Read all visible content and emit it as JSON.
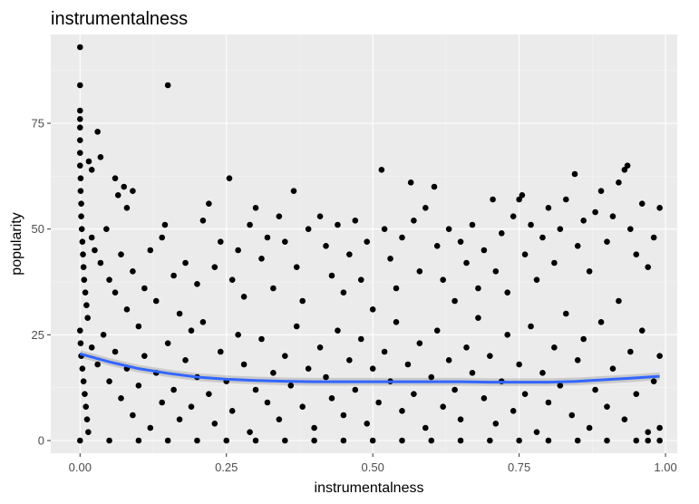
{
  "chart_data": {
    "type": "scatter",
    "title": "instrumentalness",
    "xlabel": "instrumentalness",
    "ylabel": "popularity",
    "xlim": [
      -0.05,
      1.02
    ],
    "ylim": [
      -3,
      96
    ],
    "x_ticks": [
      0,
      0.25,
      0.5,
      0.75,
      1
    ],
    "x_tick_labels": [
      "0.00",
      "0.25",
      "0.50",
      "0.75",
      "1.00"
    ],
    "y_ticks": [
      0,
      25,
      50,
      75
    ],
    "y_tick_labels": [
      "0",
      "25",
      "50",
      "75"
    ],
    "grid": true,
    "legend": "none",
    "colors": {
      "panel": "#ebebeb",
      "points": "#000000",
      "smooth_line": "#3366ff",
      "confidence_band": "#999999"
    },
    "smooth": {
      "x": [
        0,
        0.05,
        0.1,
        0.15,
        0.2,
        0.25,
        0.3,
        0.35,
        0.4,
        0.45,
        0.5,
        0.55,
        0.6,
        0.65,
        0.7,
        0.75,
        0.8,
        0.85,
        0.9,
        0.95,
        0.99
      ],
      "y": [
        20.5,
        18.6,
        17.0,
        15.9,
        15.0,
        14.5,
        14.2,
        14.0,
        13.9,
        13.9,
        13.9,
        13.9,
        13.9,
        13.9,
        13.8,
        13.8,
        13.8,
        14.0,
        14.4,
        14.8,
        15.2
      ]
    },
    "points": [
      [
        0.0,
        93
      ],
      [
        0.0,
        84
      ],
      [
        0.0,
        78
      ],
      [
        0.0,
        76
      ],
      [
        0.0,
        74
      ],
      [
        0.0,
        71
      ],
      [
        0.0,
        68
      ],
      [
        0.0,
        65
      ],
      [
        0.001,
        62
      ],
      [
        0.001,
        59
      ],
      [
        0.002,
        56
      ],
      [
        0.002,
        53
      ],
      [
        0.003,
        50
      ],
      [
        0.004,
        47
      ],
      [
        0.005,
        44
      ],
      [
        0.006,
        41
      ],
      [
        0.007,
        38
      ],
      [
        0.009,
        35
      ],
      [
        0.011,
        32
      ],
      [
        0.013,
        29
      ],
      [
        0.0,
        26
      ],
      [
        0.001,
        23
      ],
      [
        0.002,
        20
      ],
      [
        0.004,
        17
      ],
      [
        0.006,
        14
      ],
      [
        0.008,
        11
      ],
      [
        0.01,
        8
      ],
      [
        0.012,
        5
      ],
      [
        0.014,
        2
      ],
      [
        0.0,
        0
      ],
      [
        0.015,
        66
      ],
      [
        0.02,
        64
      ],
      [
        0.03,
        73
      ],
      [
        0.035,
        67
      ],
      [
        0.06,
        62
      ],
      [
        0.065,
        58
      ],
      [
        0.075,
        60
      ],
      [
        0.08,
        55
      ],
      [
        0.09,
        59
      ],
      [
        0.15,
        84
      ],
      [
        0.02,
        48
      ],
      [
        0.025,
        45
      ],
      [
        0.035,
        42
      ],
      [
        0.045,
        50
      ],
      [
        0.05,
        38
      ],
      [
        0.06,
        35
      ],
      [
        0.07,
        44
      ],
      [
        0.08,
        31
      ],
      [
        0.09,
        40
      ],
      [
        0.1,
        27
      ],
      [
        0.11,
        36
      ],
      [
        0.12,
        45
      ],
      [
        0.13,
        33
      ],
      [
        0.14,
        48
      ],
      [
        0.145,
        51
      ],
      [
        0.16,
        39
      ],
      [
        0.17,
        30
      ],
      [
        0.18,
        42
      ],
      [
        0.19,
        26
      ],
      [
        0.2,
        37
      ],
      [
        0.21,
        52
      ],
      [
        0.22,
        56
      ],
      [
        0.23,
        41
      ],
      [
        0.24,
        47
      ],
      [
        0.255,
        62
      ],
      [
        0.26,
        38
      ],
      [
        0.27,
        45
      ],
      [
        0.28,
        34
      ],
      [
        0.29,
        51
      ],
      [
        0.3,
        55
      ],
      [
        0.31,
        43
      ],
      [
        0.32,
        48
      ],
      [
        0.33,
        36
      ],
      [
        0.34,
        53
      ],
      [
        0.35,
        47
      ],
      [
        0.365,
        59
      ],
      [
        0.37,
        41
      ],
      [
        0.38,
        33
      ],
      [
        0.39,
        50
      ],
      [
        0.41,
        53
      ],
      [
        0.42,
        46
      ],
      [
        0.43,
        39
      ],
      [
        0.44,
        51
      ],
      [
        0.45,
        35
      ],
      [
        0.46,
        44
      ],
      [
        0.47,
        52
      ],
      [
        0.48,
        38
      ],
      [
        0.49,
        47
      ],
      [
        0.5,
        31
      ],
      [
        0.515,
        64
      ],
      [
        0.52,
        50
      ],
      [
        0.53,
        43
      ],
      [
        0.54,
        36
      ],
      [
        0.55,
        48
      ],
      [
        0.565,
        61
      ],
      [
        0.57,
        52
      ],
      [
        0.58,
        40
      ],
      [
        0.59,
        55
      ],
      [
        0.605,
        60
      ],
      [
        0.61,
        46
      ],
      [
        0.62,
        38
      ],
      [
        0.63,
        50
      ],
      [
        0.64,
        33
      ],
      [
        0.65,
        47
      ],
      [
        0.66,
        42
      ],
      [
        0.67,
        51
      ],
      [
        0.68,
        36
      ],
      [
        0.69,
        45
      ],
      [
        0.705,
        57
      ],
      [
        0.71,
        40
      ],
      [
        0.72,
        49
      ],
      [
        0.73,
        35
      ],
      [
        0.74,
        53
      ],
      [
        0.75,
        57
      ],
      [
        0.755,
        58
      ],
      [
        0.76,
        44
      ],
      [
        0.77,
        51
      ],
      [
        0.78,
        38
      ],
      [
        0.79,
        48
      ],
      [
        0.8,
        55
      ],
      [
        0.81,
        42
      ],
      [
        0.82,
        50
      ],
      [
        0.83,
        57
      ],
      [
        0.845,
        63
      ],
      [
        0.85,
        46
      ],
      [
        0.86,
        52
      ],
      [
        0.87,
        40
      ],
      [
        0.88,
        54
      ],
      [
        0.89,
        59
      ],
      [
        0.9,
        47
      ],
      [
        0.91,
        53
      ],
      [
        0.92,
        61
      ],
      [
        0.93,
        64
      ],
      [
        0.935,
        65
      ],
      [
        0.94,
        50
      ],
      [
        0.95,
        44
      ],
      [
        0.96,
        56
      ],
      [
        0.97,
        41
      ],
      [
        0.98,
        48
      ],
      [
        0.99,
        55
      ],
      [
        0.02,
        22
      ],
      [
        0.03,
        18
      ],
      [
        0.04,
        25
      ],
      [
        0.05,
        14
      ],
      [
        0.06,
        21
      ],
      [
        0.07,
        10
      ],
      [
        0.08,
        17
      ],
      [
        0.09,
        6
      ],
      [
        0.1,
        13
      ],
      [
        0.11,
        20
      ],
      [
        0.12,
        3
      ],
      [
        0.13,
        16
      ],
      [
        0.14,
        9
      ],
      [
        0.15,
        23
      ],
      [
        0.16,
        12
      ],
      [
        0.17,
        5
      ],
      [
        0.18,
        19
      ],
      [
        0.19,
        8
      ],
      [
        0.2,
        15
      ],
      [
        0.21,
        28
      ],
      [
        0.22,
        11
      ],
      [
        0.23,
        4
      ],
      [
        0.24,
        21
      ],
      [
        0.25,
        14
      ],
      [
        0.26,
        7
      ],
      [
        0.27,
        25
      ],
      [
        0.28,
        18
      ],
      [
        0.29,
        2
      ],
      [
        0.3,
        12
      ],
      [
        0.31,
        24
      ],
      [
        0.32,
        9
      ],
      [
        0.33,
        16
      ],
      [
        0.34,
        5
      ],
      [
        0.35,
        20
      ],
      [
        0.36,
        13
      ],
      [
        0.37,
        27
      ],
      [
        0.38,
        8
      ],
      [
        0.39,
        17
      ],
      [
        0.4,
        3
      ],
      [
        0.41,
        22
      ],
      [
        0.42,
        15
      ],
      [
        0.43,
        10
      ],
      [
        0.44,
        26
      ],
      [
        0.45,
        6
      ],
      [
        0.46,
        19
      ],
      [
        0.47,
        12
      ],
      [
        0.48,
        24
      ],
      [
        0.49,
        4
      ],
      [
        0.5,
        17
      ],
      [
        0.51,
        9
      ],
      [
        0.52,
        21
      ],
      [
        0.53,
        14
      ],
      [
        0.54,
        28
      ],
      [
        0.55,
        7
      ],
      [
        0.56,
        18
      ],
      [
        0.57,
        11
      ],
      [
        0.58,
        23
      ],
      [
        0.59,
        3
      ],
      [
        0.6,
        15
      ],
      [
        0.61,
        26
      ],
      [
        0.62,
        8
      ],
      [
        0.63,
        19
      ],
      [
        0.64,
        12
      ],
      [
        0.65,
        5
      ],
      [
        0.66,
        22
      ],
      [
        0.67,
        16
      ],
      [
        0.68,
        29
      ],
      [
        0.69,
        10
      ],
      [
        0.7,
        20
      ],
      [
        0.71,
        4
      ],
      [
        0.72,
        14
      ],
      [
        0.73,
        25
      ],
      [
        0.74,
        7
      ],
      [
        0.75,
        18
      ],
      [
        0.76,
        11
      ],
      [
        0.77,
        27
      ],
      [
        0.78,
        2
      ],
      [
        0.79,
        16
      ],
      [
        0.8,
        9
      ],
      [
        0.81,
        22
      ],
      [
        0.82,
        13
      ],
      [
        0.83,
        30
      ],
      [
        0.84,
        6
      ],
      [
        0.85,
        19
      ],
      [
        0.86,
        24
      ],
      [
        0.87,
        3
      ],
      [
        0.88,
        12
      ],
      [
        0.89,
        28
      ],
      [
        0.9,
        8
      ],
      [
        0.91,
        17
      ],
      [
        0.92,
        33
      ],
      [
        0.93,
        5
      ],
      [
        0.94,
        21
      ],
      [
        0.95,
        11
      ],
      [
        0.96,
        26
      ],
      [
        0.97,
        2
      ],
      [
        0.98,
        14
      ],
      [
        0.99,
        20
      ],
      [
        0.99,
        3
      ],
      [
        0.95,
        0
      ],
      [
        0.05,
        0
      ],
      [
        0.1,
        0
      ],
      [
        0.15,
        0
      ],
      [
        0.2,
        0
      ],
      [
        0.25,
        0
      ],
      [
        0.3,
        0
      ],
      [
        0.35,
        0
      ],
      [
        0.4,
        0
      ],
      [
        0.45,
        0
      ],
      [
        0.5,
        0
      ],
      [
        0.55,
        0
      ],
      [
        0.6,
        0
      ],
      [
        0.65,
        0
      ],
      [
        0.7,
        0
      ],
      [
        0.75,
        0
      ],
      [
        0.8,
        0
      ],
      [
        0.85,
        0
      ],
      [
        0.9,
        0
      ],
      [
        0.97,
        0
      ],
      [
        0.99,
        0
      ]
    ]
  }
}
